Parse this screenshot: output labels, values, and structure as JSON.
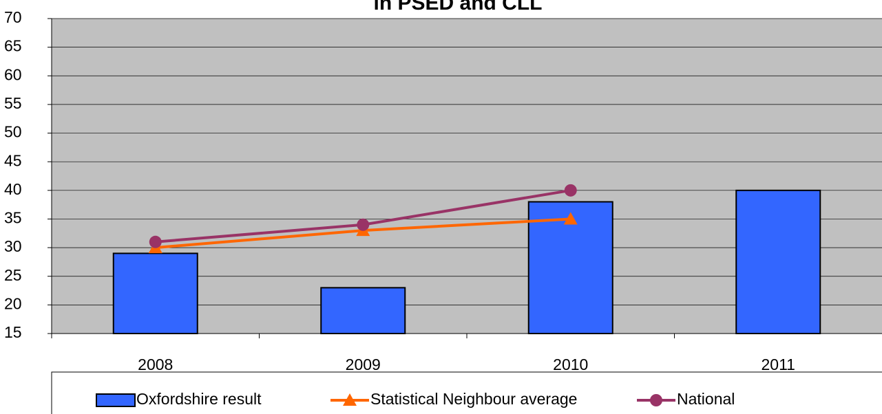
{
  "chart_data": {
    "type": "bar",
    "title": "in PSED and CLL",
    "categories": [
      "2008",
      "2009",
      "2010",
      "2011"
    ],
    "series": [
      {
        "name": "Oxfordshire result",
        "type": "bar",
        "color": "#3366ff",
        "values": [
          29,
          23,
          38,
          40
        ]
      },
      {
        "name": "Statistical Neighbour average",
        "type": "line",
        "marker": "triangle",
        "color": "#ff6600",
        "values": [
          30,
          33,
          35,
          null
        ]
      },
      {
        "name": "National",
        "type": "line",
        "marker": "circle",
        "color": "#993366",
        "values": [
          31,
          34,
          40,
          null
        ]
      }
    ],
    "ylim": [
      15,
      70
    ],
    "yticks": [
      15,
      20,
      25,
      30,
      35,
      40,
      45,
      50,
      55,
      60,
      65,
      70
    ],
    "grid": true,
    "plot_background": "#c0c0c0",
    "legend": "bottom"
  }
}
